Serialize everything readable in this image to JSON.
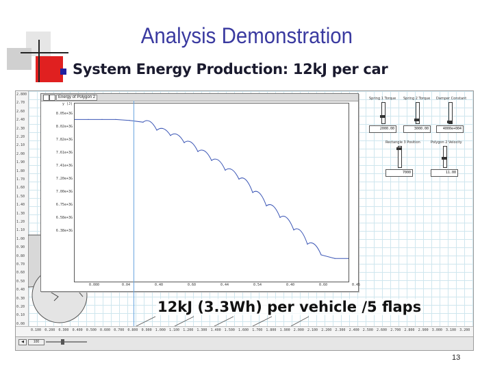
{
  "slide": {
    "title": "Analysis Demonstration",
    "subtitle": "System Energy Production: 12kJ per car",
    "caption": "12kJ (3.3Wh) per vehicle /5 flaps",
    "page_number": "13"
  },
  "software": {
    "plot_window_title": "Energy of Polygon 2",
    "y_axis_top_label": "y (J)",
    "y_tick_labels": [
      "8.05e+3G",
      "8.02e+3G",
      "7.82e+3G",
      "7.61e+3G",
      "7.41e+3G",
      "7.20e+3G",
      "7.00e+3G",
      "6.75e+3G",
      "6.58e+3G",
      "6.38e+3G"
    ],
    "x_tick_labels": [
      "0.000",
      "0.04",
      "0.40",
      "0.60",
      "0.44",
      "0.54",
      "0.40",
      "0.60",
      "0.45"
    ],
    "left_ruler_labels": [
      "2.800",
      "2.70",
      "2.60",
      "2.40",
      "2.30",
      "2.20",
      "2.10",
      "2.00",
      "1.90",
      "1.80",
      "1.70",
      "1.60",
      "1.50",
      "1.40",
      "1.30",
      "1.20",
      "1.10",
      "1.00",
      "0.90",
      "0.80",
      "0.70",
      "0.60",
      "0.50",
      "0.40",
      "0.30",
      "0.20",
      "0.10",
      "0.00"
    ],
    "bottom_ruler_labels": [
      "0.100",
      "0.200",
      "0.300",
      "0.400",
      "0.500",
      "0.600",
      "0.700",
      "0.800",
      "0.900",
      "1.000",
      "1.100",
      "1.200",
      "1.300",
      "1.400",
      "1.500",
      "1.600",
      "1.700",
      "1.800",
      "1.900",
      "2.000",
      "2.100",
      "2.200",
      "2.300",
      "2.400",
      "2.500",
      "2.600",
      "2.700",
      "2.800",
      "2.900",
      "3.000",
      "3.100",
      "3.200"
    ],
    "controls": [
      {
        "label": "Spring 1 Torque",
        "value": "2000.00"
      },
      {
        "label": "Spring 2 Torque",
        "value": "3000.00"
      },
      {
        "label": "Damper Constant",
        "value": "4000e+004"
      },
      {
        "label": "Rectangle 3 Position",
        "value": "7000"
      },
      {
        "label": "Polygon 2 Velocity",
        "value": "11.00"
      }
    ],
    "status_field_value": "100"
  },
  "colors": {
    "title": "#3a3aa0",
    "plot_line": "#3a55b5",
    "car_body": "#d8d8d8",
    "grid": "#cfe6ee",
    "logo_red": "#e02020"
  },
  "chart_data": {
    "type": "line",
    "title": "",
    "xlabel": "",
    "ylabel": "y (J)",
    "series": [
      {
        "x": [
          0.0,
          0.05,
          0.1,
          0.15,
          0.2,
          0.25,
          0.3,
          0.35,
          0.4,
          0.45,
          0.5,
          0.55,
          0.6,
          0.65,
          0.7,
          0.75,
          0.8,
          0.85,
          0.9,
          0.95,
          1.0
        ],
        "y": [
          8.02,
          8.02,
          8.02,
          8.02,
          8.01,
          7.99,
          7.9,
          7.84,
          7.76,
          7.66,
          7.56,
          7.45,
          7.35,
          7.2,
          7.05,
          6.92,
          6.78,
          6.62,
          6.5,
          6.46,
          6.46
        ]
      }
    ]
  }
}
